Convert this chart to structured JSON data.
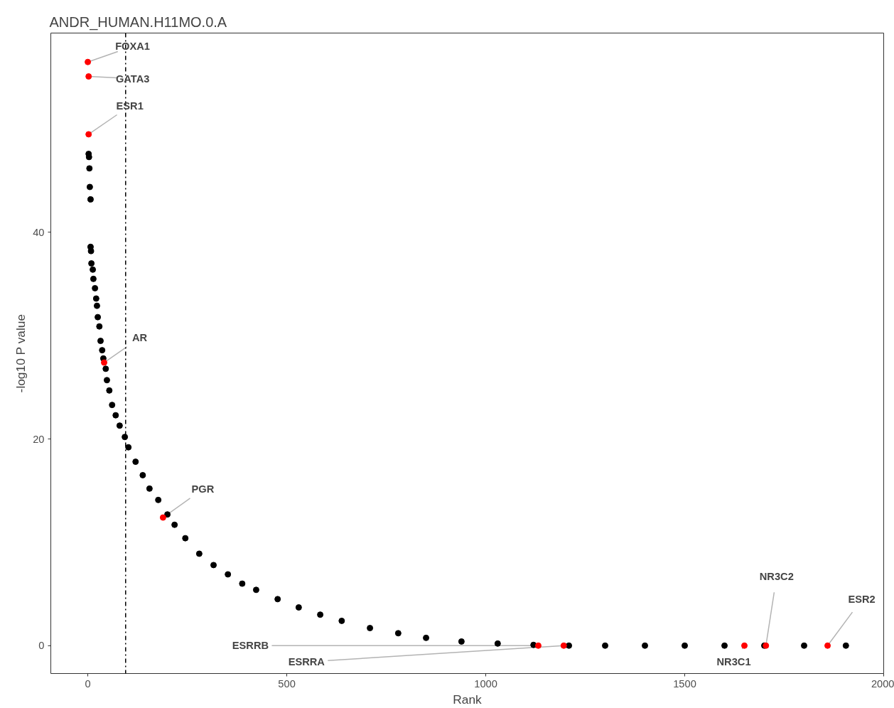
{
  "chart_data": {
    "type": "scatter",
    "title": "ANDR_HUMAN.H11MO.0.A",
    "xlabel": "Rank",
    "ylabel": "-log10 P value",
    "xlim": [
      -93,
      2000
    ],
    "ylim": [
      -2.7,
      59.3
    ],
    "xticks": [
      0,
      500,
      1000,
      1500,
      2000
    ],
    "yticks": [
      0,
      20,
      40
    ],
    "grid": false,
    "marker": "circle",
    "series": [
      {
        "color": "#000000",
        "x": [
          2,
          3,
          4,
          5,
          7,
          7,
          8,
          9,
          12.5,
          14,
          18,
          21,
          23,
          25,
          29,
          32,
          36,
          39,
          45,
          48,
          54,
          61,
          70,
          80,
          93,
          102,
          120,
          138,
          155,
          177,
          200,
          218,
          245,
          280,
          316,
          352,
          388,
          423,
          477,
          530,
          584,
          638,
          709,
          780,
          850,
          939,
          1030,
          1120,
          1209,
          1300,
          1400,
          1500,
          1600,
          1700,
          1800,
          1905
        ],
        "values": [
          47.6,
          47.3,
          46.2,
          44.4,
          43.2,
          38.6,
          38.2,
          37.0,
          36.4,
          35.5,
          34.6,
          33.6,
          32.9,
          31.8,
          30.9,
          29.5,
          28.6,
          27.8,
          26.8,
          25.7,
          24.7,
          23.3,
          22.3,
          21.3,
          20.2,
          19.2,
          17.8,
          16.5,
          15.2,
          14.1,
          12.7,
          11.7,
          10.4,
          8.9,
          7.8,
          6.9,
          6.0,
          5.4,
          4.5,
          3.7,
          3.0,
          2.4,
          1.7,
          1.2,
          0.75,
          0.4,
          0.2,
          0.07,
          0,
          0,
          0,
          0,
          0,
          0,
          0,
          0
        ]
      },
      {
        "color": "#ff0000",
        "x": [
          0,
          2,
          2,
          41,
          189,
          1132,
          1196,
          1650,
          1704,
          1859
        ],
        "values": [
          56.5,
          55.1,
          49.5,
          27.4,
          12.4,
          0,
          0,
          0,
          0,
          0
        ]
      }
    ],
    "ref_lines": [
      {
        "axis": "x",
        "value": 95,
        "line_style": "dashed",
        "color": "#000000"
      }
    ],
    "annotations": [
      {
        "text": "FOXA1",
        "x": 0,
        "y": 56.5
      },
      {
        "text": "GATA3",
        "x": 2,
        "y": 55.1
      },
      {
        "text": "ESR1",
        "x": 2,
        "y": 49.5
      },
      {
        "text": "AR",
        "x": 41,
        "y": 27.4
      },
      {
        "text": "PGR",
        "x": 189,
        "y": 12.4
      },
      {
        "text": "ESRRB",
        "x": 1132,
        "y": 0
      },
      {
        "text": "ESRRA",
        "x": 1196,
        "y": 0
      },
      {
        "text": "NR3C1",
        "x": 1650,
        "y": 0
      },
      {
        "text": "NR3C2",
        "x": 1704,
        "y": 0
      },
      {
        "text": "ESR2",
        "x": 1859,
        "y": 0
      }
    ]
  }
}
